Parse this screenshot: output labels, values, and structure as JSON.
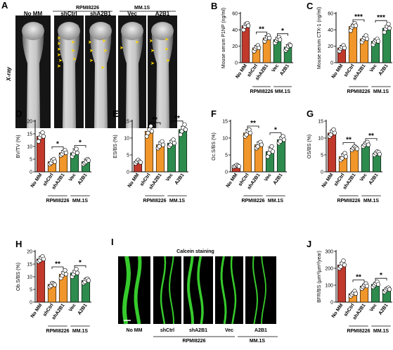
{
  "colors": {
    "no_mm": "#c0392b",
    "rpmi": "#f0962a",
    "mm1s": "#2e8b4e",
    "calcein": "#39d62e"
  },
  "panel_a": {
    "letter": "A",
    "group_rpmi": "RPMI8226",
    "group_mm1s": "MM.1S",
    "labels": [
      "No MM",
      "shCtrl",
      "shA2B1",
      "Vec",
      "A2B1"
    ],
    "side_label": "X-ray"
  },
  "panel_i": {
    "letter": "I",
    "title": "Calcein staining",
    "labels": [
      "No MM",
      "shCtrl",
      "shA2B1",
      "Vec",
      "A2B1"
    ],
    "group_rpmi": "RPMI8226",
    "group_mm1s": "MM.1S"
  },
  "chart_data": [
    {
      "type": "bar",
      "letter": "B",
      "ylabel": "Mouse serum P1NP (ng/ml)",
      "ylim": [
        0,
        60
      ],
      "yticks": [
        0,
        20,
        40,
        60
      ],
      "categories": [
        "No MM",
        "shCtrl",
        "shA2B1",
        "Vec",
        "A2B1"
      ],
      "groups": [
        {
          "label": "RPMI8226",
          "from": 1,
          "to": 2
        },
        {
          "label": "MM.1S",
          "from": 3,
          "to": 4
        }
      ],
      "values": [
        45,
        18,
        30,
        28,
        19
      ],
      "errors": [
        3,
        3,
        3,
        3,
        3
      ],
      "points": [
        [
          40,
          44,
          47,
          48,
          45
        ],
        [
          14,
          17,
          19,
          21,
          18
        ],
        [
          26,
          29,
          31,
          33,
          30
        ],
        [
          24,
          27,
          29,
          31,
          28
        ],
        [
          15,
          17,
          20,
          22,
          21
        ]
      ],
      "significance": [
        {
          "from": 1,
          "to": 2,
          "label": "**"
        },
        {
          "from": 3,
          "to": 4,
          "label": "*"
        }
      ]
    },
    {
      "type": "bar",
      "letter": "C",
      "ylabel": "Mouse serum CTX-1 (ng/ml)",
      "ylim": [
        0,
        60
      ],
      "yticks": [
        0,
        20,
        40,
        60
      ],
      "categories": [
        "No MM",
        "shCtrl",
        "shA2B1",
        "Vec",
        "A2B1"
      ],
      "groups": [
        {
          "label": "RPMI8226",
          "from": 1,
          "to": 2
        },
        {
          "label": "MM.1S",
          "from": 3,
          "to": 4
        }
      ],
      "values": [
        18,
        44,
        29,
        26,
        42
      ],
      "errors": [
        3,
        3,
        3,
        3,
        3
      ],
      "points": [
        [
          14,
          17,
          19,
          21,
          18
        ],
        [
          39,
          43,
          45,
          48,
          45
        ],
        [
          25,
          28,
          30,
          33,
          29
        ],
        [
          22,
          25,
          27,
          29,
          26
        ],
        [
          37,
          41,
          44,
          47,
          42
        ]
      ],
      "significance": [
        {
          "from": 1,
          "to": 2,
          "label": "***"
        },
        {
          "from": 3,
          "to": 4,
          "label": "***"
        }
      ]
    },
    {
      "type": "bar",
      "letter": "D",
      "ylabel": "BV/TV (%)",
      "ylim": [
        0,
        20
      ],
      "yticks": [
        0,
        5,
        10,
        15,
        20
      ],
      "categories": [
        "No MM",
        "shCtrl",
        "shA2B1",
        "Vec",
        "A2B1"
      ],
      "groups": [
        {
          "label": "RPMI8226",
          "from": 1,
          "to": 2
        },
        {
          "label": "MM.1S",
          "from": 3,
          "to": 4
        }
      ],
      "values": [
        14,
        4,
        7.5,
        7.5,
        4
      ],
      "errors": [
        1.5,
        1,
        1,
        1.5,
        1
      ],
      "points": [
        [
          12,
          13.5,
          14.5,
          15.5,
          14
        ],
        [
          3,
          3.5,
          4.5,
          5,
          4
        ],
        [
          6.5,
          7,
          8,
          8.5,
          7.5
        ],
        [
          6,
          7,
          8,
          9,
          7.5
        ],
        [
          3,
          3.5,
          4,
          5,
          4.5
        ]
      ],
      "significance": [
        {
          "from": 1,
          "to": 2,
          "label": "*"
        },
        {
          "from": 3,
          "to": 4,
          "label": "*"
        }
      ]
    },
    {
      "type": "bar",
      "letter": "E",
      "ylabel": "ES/BS (%)",
      "ylim": [
        0,
        15
      ],
      "yticks": [
        0,
        5,
        10,
        15
      ],
      "categories": [
        "No MM",
        "shCtrl",
        "shA2B1",
        "Vec",
        "A2B1"
      ],
      "groups": [
        {
          "label": "RPMI8226",
          "from": 1,
          "to": 2
        },
        {
          "label": "MM.1S",
          "from": 3,
          "to": 4
        }
      ],
      "values": [
        3,
        12,
        8,
        8.5,
        12.5
      ],
      "errors": [
        0.6,
        1,
        0.8,
        0.8,
        1
      ],
      "points": [
        [
          2.5,
          3,
          3.5,
          3,
          2.8
        ],
        [
          10.5,
          11.5,
          12.5,
          13.5,
          12
        ],
        [
          7,
          7.5,
          8.5,
          9,
          8
        ],
        [
          7.5,
          8,
          9,
          9.5,
          8.5
        ],
        [
          11,
          12,
          13,
          14,
          12.5
        ]
      ],
      "significance": [
        {
          "from": 1,
          "to": 2,
          "label": "**"
        },
        {
          "from": 3,
          "to": 4,
          "label": "**"
        }
      ]
    },
    {
      "type": "bar",
      "letter": "F",
      "ylabel": "Oc.S/BS (%)",
      "ylim": [
        0,
        15
      ],
      "yticks": [
        0,
        5,
        10,
        15
      ],
      "categories": [
        "No MM",
        "shCtrl",
        "shA2B1",
        "Vec",
        "A2B1"
      ],
      "groups": [
        {
          "label": "RPMI8226",
          "from": 1,
          "to": 2
        },
        {
          "label": "MM.1S",
          "from": 3,
          "to": 4
        }
      ],
      "values": [
        1.8,
        11.5,
        8,
        6,
        9.5
      ],
      "errors": [
        0.4,
        1,
        0.8,
        1.3,
        0.8
      ],
      "points": [
        [
          1.5,
          1.7,
          2,
          1.8,
          1.6
        ],
        [
          10.5,
          11,
          12,
          12.5,
          11.5
        ],
        [
          7,
          7.5,
          8.5,
          8.8,
          8
        ],
        [
          4.5,
          5.5,
          6.5,
          7.5,
          6
        ],
        [
          8.5,
          9,
          10,
          10.5,
          9.5
        ]
      ],
      "significance": [
        {
          "from": 1,
          "to": 2,
          "label": "**"
        },
        {
          "from": 3,
          "to": 4,
          "label": "*"
        }
      ]
    },
    {
      "type": "bar",
      "letter": "G",
      "ylabel": "OS/BS (%)",
      "ylim": [
        0,
        15
      ],
      "yticks": [
        0,
        5,
        10,
        15
      ],
      "categories": [
        "No MM",
        "shCtrl",
        "shA2B1",
        "Vec",
        "A2B1"
      ],
      "groups": [
        {
          "label": "RPMI8226",
          "from": 1,
          "to": 2
        },
        {
          "label": "MM.1S",
          "from": 3,
          "to": 4
        }
      ],
      "values": [
        11.5,
        4.5,
        7,
        8,
        5.5
      ],
      "errors": [
        0.8,
        0.8,
        0.6,
        0.8,
        0.6
      ],
      "points": [
        [
          10.5,
          11,
          12,
          12.5,
          11.5
        ],
        [
          3.5,
          4,
          5,
          5.5,
          4.5
        ],
        [
          6.5,
          7,
          7.5,
          7.2,
          6.8
        ],
        [
          7.5,
          8,
          8.5,
          8.8,
          8
        ],
        [
          5,
          5.5,
          6,
          5.8,
          5.2
        ]
      ],
      "significance": [
        {
          "from": 1,
          "to": 2,
          "label": "**"
        },
        {
          "from": 3,
          "to": 4,
          "label": "**"
        }
      ]
    },
    {
      "type": "bar",
      "letter": "H",
      "ylabel": "Ob.S/BS (%)",
      "ylim": [
        0,
        20
      ],
      "yticks": [
        0,
        5,
        10,
        15,
        20
      ],
      "categories": [
        "No MM",
        "shCtrl",
        "shA2B1",
        "Vec",
        "A2B1"
      ],
      "groups": [
        {
          "label": "RPMI8226",
          "from": 1,
          "to": 2
        },
        {
          "label": "MM.1S",
          "from": 3,
          "to": 4
        }
      ],
      "values": [
        17,
        7,
        11,
        11.5,
        8.5
      ],
      "errors": [
        1,
        0.8,
        1,
        1,
        0.8
      ],
      "points": [
        [
          16,
          16.5,
          17.5,
          18,
          17
        ],
        [
          6,
          6.5,
          7.5,
          7.2,
          6.8
        ],
        [
          9.5,
          10.5,
          11.5,
          12.5,
          11
        ],
        [
          10,
          11,
          12,
          13,
          11.5
        ],
        [
          7.5,
          8,
          9,
          9.2,
          8.5
        ]
      ],
      "significance": [
        {
          "from": 1,
          "to": 2,
          "label": "**"
        },
        {
          "from": 3,
          "to": 4,
          "label": "*"
        }
      ]
    },
    {
      "type": "bar",
      "letter": "J",
      "ylabel": "BFR/BS (µm³/µm²/year)",
      "ylim": [
        0,
        300
      ],
      "yticks": [
        0,
        100,
        200,
        300
      ],
      "categories": [
        "No MM",
        "shCtrl",
        "shA2B1",
        "Vec",
        "A2B1"
      ],
      "groups": [
        {
          "label": "RPMI8226",
          "from": 1,
          "to": 2
        },
        {
          "label": "MM.1S",
          "from": 3,
          "to": 4
        }
      ],
      "values": [
        220,
        50,
        95,
        105,
        75
      ],
      "errors": [
        15,
        10,
        12,
        12,
        10
      ],
      "points": [
        [
          200,
          210,
          230,
          245,
          220
        ],
        [
          35,
          45,
          55,
          65,
          50
        ],
        [
          80,
          90,
          100,
          110,
          95
        ],
        [
          90,
          100,
          110,
          120,
          105
        ],
        [
          60,
          70,
          80,
          85,
          75
        ]
      ],
      "significance": [
        {
          "from": 1,
          "to": 2,
          "label": "**"
        },
        {
          "from": 3,
          "to": 4,
          "label": "*"
        }
      ]
    }
  ]
}
